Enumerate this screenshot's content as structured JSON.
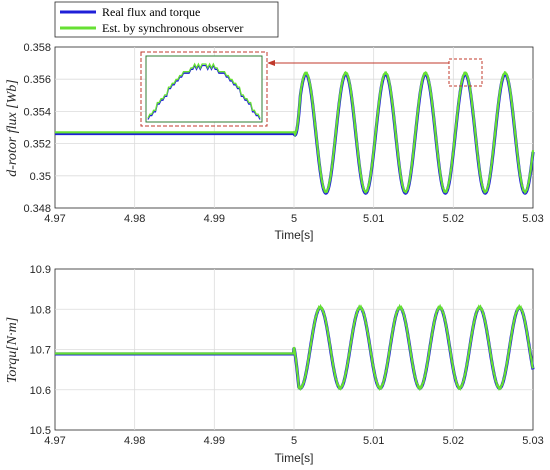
{
  "legend": {
    "entries": [
      {
        "label": "Real flux and torque",
        "color": "#1f1fd8"
      },
      {
        "label": "Est. by synchronous observer",
        "color": "#66e033"
      }
    ]
  },
  "chart_data": [
    {
      "type": "line",
      "xlabel": "Time[s]",
      "ylabel": "d-rotor flux [Wb]",
      "xlim": [
        4.97,
        5.03
      ],
      "ylim": [
        0.348,
        0.358
      ],
      "xticks": [
        "4.97",
        "4.98",
        "4.99",
        "5",
        "5.01",
        "5.02",
        "5.03"
      ],
      "yticks": [
        "0.348",
        "0.35",
        "0.352",
        "0.354",
        "0.356",
        "0.358"
      ],
      "grid": true,
      "steady_value": 0.3527,
      "step_time": 5.0,
      "oscillation": {
        "mean": 0.3527,
        "amplitude": 0.0037,
        "period": 0.005,
        "first_peak": 5.0015
      },
      "series": [
        {
          "name": "Real flux and torque",
          "color": "#1f1fd8"
        },
        {
          "name": "Est. by synchronous observer",
          "color": "#66e033"
        }
      ],
      "inset": {
        "zoom_x": [
          5.0195,
          5.0215
        ],
        "zoom_y": [
          0.3558,
          0.357
        ],
        "arrow_color": "#c0392b",
        "box_color": "#c0392b"
      }
    },
    {
      "type": "line",
      "xlabel": "Time[s]",
      "ylabel": "Torqu[N·m]",
      "xlim": [
        4.97,
        5.03
      ],
      "ylim": [
        10.5,
        10.9
      ],
      "xticks": [
        "4.97",
        "4.98",
        "4.99",
        "5",
        "5.01",
        "5.02",
        "5.03"
      ],
      "yticks": [
        "10.5",
        "10.6",
        "10.7",
        "10.8",
        "10.9"
      ],
      "grid": true,
      "steady_value": 10.69,
      "step_time": 5.0,
      "oscillation": {
        "mean": 10.705,
        "amplitude": 0.1,
        "period": 0.005,
        "first_trough": 5.0008
      },
      "series": [
        {
          "name": "Real flux and torque",
          "color": "#1f1fd8"
        },
        {
          "name": "Est. by synchronous observer",
          "color": "#66e033"
        }
      ]
    }
  ]
}
